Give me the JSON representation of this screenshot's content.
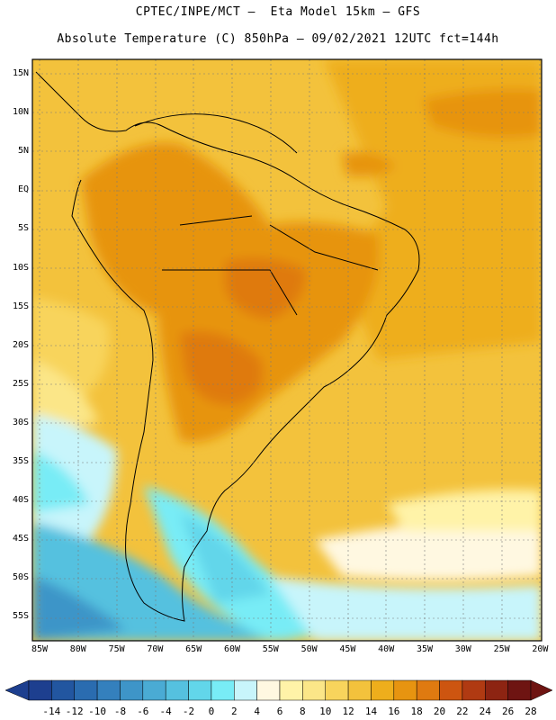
{
  "header": {
    "line1": "CPTEC/INPE/MCT –  Eta Model 15km – GFS",
    "line2": "Absolute Temperature (C) 850hPa – 09/02/2021 12UTC fct=144h"
  },
  "map": {
    "lat_labels": [
      "15N",
      "10N",
      "5N",
      "EQ",
      "5S",
      "10S",
      "15S",
      "20S",
      "25S",
      "30S",
      "35S",
      "40S",
      "45S",
      "50S",
      "55S"
    ],
    "lon_labels": [
      "85W",
      "80W",
      "75W",
      "70W",
      "65W",
      "60W",
      "55W",
      "50W",
      "45W",
      "40W",
      "35W",
      "30W",
      "25W",
      "20W"
    ]
  },
  "colorbar": {
    "labels": [
      "-14",
      "-12",
      "-10",
      "-8",
      "-6",
      "-4",
      "-2",
      "0",
      "2",
      "4",
      "6",
      "8",
      "10",
      "12",
      "14",
      "16",
      "18",
      "20",
      "22",
      "24",
      "26",
      "28"
    ],
    "colors": [
      "#1d3f8f",
      "#2256a0",
      "#2a6cb0",
      "#3480bd",
      "#3e95c8",
      "#4aabd4",
      "#55c1df",
      "#62d6ea",
      "#78ecf6",
      "#c8f5fb",
      "#fff8e1",
      "#fff3a8",
      "#fbe688",
      "#f8d45c",
      "#f3c23c",
      "#eeae1c",
      "#e79410",
      "#df7a10",
      "#cd5510",
      "#b03a12",
      "#8d2412",
      "#6e1412"
    ]
  }
}
